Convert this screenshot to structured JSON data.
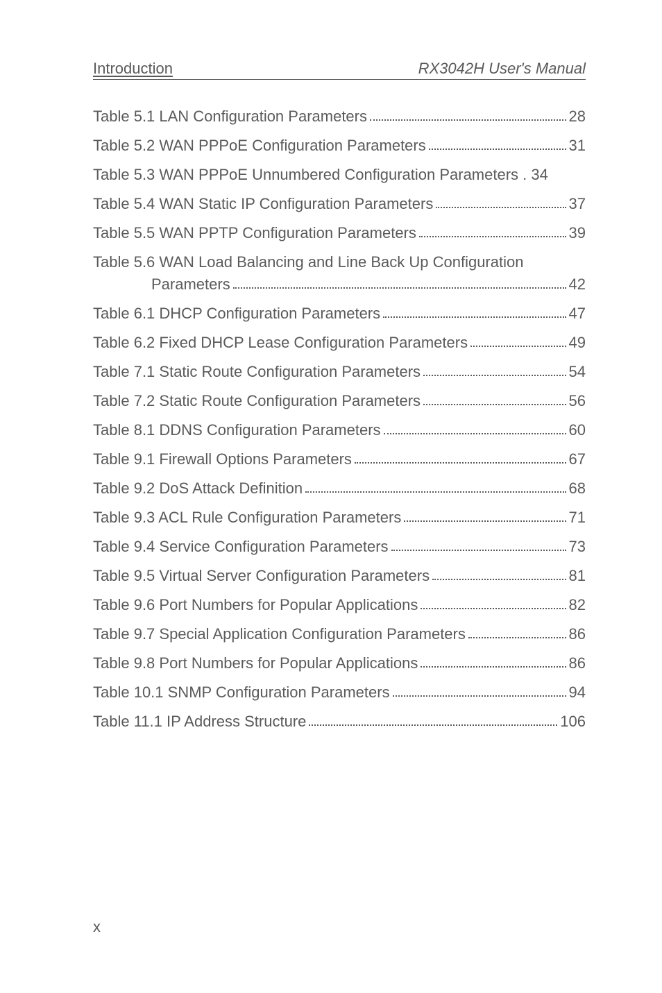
{
  "header": {
    "left": "Introduction",
    "right": "RX3042H User's Manual"
  },
  "toc": {
    "entries": [
      {
        "text": "Table 5.1 LAN Configuration Parameters",
        "page": "28"
      },
      {
        "text": "Table 5.2 WAN PPPoE Configuration Parameters",
        "page": "31"
      },
      {
        "text": "Table 5.3 WAN PPPoE Unnumbered Configuration Parameters",
        "page": "34",
        "noleader": true
      },
      {
        "text": "Table 5.4 WAN Static IP Configuration Parameters",
        "page": "37"
      },
      {
        "text": "Table 5.5 WAN PPTP Configuration Parameters",
        "page": "39"
      },
      {
        "text": "Table 5.6 WAN Load Balancing and Line Back Up Configuration",
        "subtext": "Parameters",
        "page": "42",
        "multiline": true
      },
      {
        "text": "Table 6.1 DHCP Configuration Parameters",
        "page": "47"
      },
      {
        "text": "Table 6.2 Fixed DHCP Lease Configuration Parameters",
        "page": "49"
      },
      {
        "text": "Table 7.1 Static Route Configuration Parameters",
        "page": "54"
      },
      {
        "text": "Table 7.2 Static Route Configuration Parameters",
        "page": "56"
      },
      {
        "text": "Table 8.1 DDNS Configuration Parameters",
        "page": "60"
      },
      {
        "text": "Table 9.1 Firewall Options Parameters",
        "page": "67"
      },
      {
        "text": "Table 9.2 DoS Attack Definition",
        "page": "68"
      },
      {
        "text": "Table 9.3 ACL Rule Configuration Parameters",
        "page": "71"
      },
      {
        "text": "Table 9.4 Service Configuration Parameters",
        "page": "73"
      },
      {
        "text": "Table 9.5 Virtual Server Configuration Parameters",
        "page": "81"
      },
      {
        "text": "Table 9.6 Port Numbers for Popular Applications",
        "page": "82"
      },
      {
        "text": "Table 9.7 Special Application Configuration Parameters",
        "page": "86"
      },
      {
        "text": "Table 9.8 Port Numbers for Popular Applications",
        "page": "86"
      },
      {
        "text": "Table 10.1 SNMP Configuration Parameters",
        "page": "94"
      },
      {
        "text": "Table 11.1 IP Address Structure",
        "page": "106"
      }
    ]
  },
  "footer": {
    "page_number": "x"
  }
}
